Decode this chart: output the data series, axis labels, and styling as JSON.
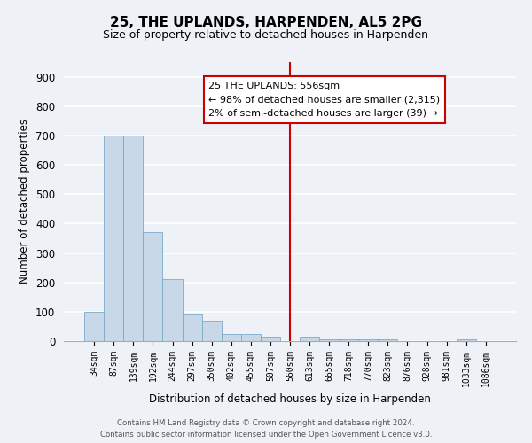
{
  "title": "25, THE UPLANDS, HARPENDEN, AL5 2PG",
  "subtitle": "Size of property relative to detached houses in Harpenden",
  "xlabel": "Distribution of detached houses by size in Harpenden",
  "ylabel": "Number of detached properties",
  "bar_labels": [
    "34sqm",
    "87sqm",
    "139sqm",
    "192sqm",
    "244sqm",
    "297sqm",
    "350sqm",
    "402sqm",
    "455sqm",
    "507sqm",
    "560sqm",
    "613sqm",
    "665sqm",
    "718sqm",
    "770sqm",
    "823sqm",
    "876sqm",
    "928sqm",
    "981sqm",
    "1033sqm",
    "1086sqm"
  ],
  "bar_values": [
    100,
    700,
    700,
    370,
    210,
    95,
    70,
    25,
    25,
    15,
    0,
    15,
    5,
    5,
    5,
    5,
    0,
    0,
    0,
    5,
    0
  ],
  "bar_color": "#c8d8e8",
  "bar_edge_color": "#7aaac8",
  "vline_x": 10.0,
  "vline_color": "#cc0000",
  "ylim": [
    0,
    950
  ],
  "yticks": [
    0,
    100,
    200,
    300,
    400,
    500,
    600,
    700,
    800,
    900
  ],
  "annotation_title": "25 THE UPLANDS: 556sqm",
  "annotation_line1": "← 98% of detached houses are smaller (2,315)",
  "annotation_line2": "2% of semi-detached houses are larger (39) →",
  "annotation_box_color": "#ffffff",
  "annotation_box_edge": "#cc0000",
  "footer_line1": "Contains HM Land Registry data © Crown copyright and database right 2024.",
  "footer_line2": "Contains public sector information licensed under the Open Government Licence v3.0.",
  "background_color": "#eef2f7",
  "grid_color": "#ffffff"
}
